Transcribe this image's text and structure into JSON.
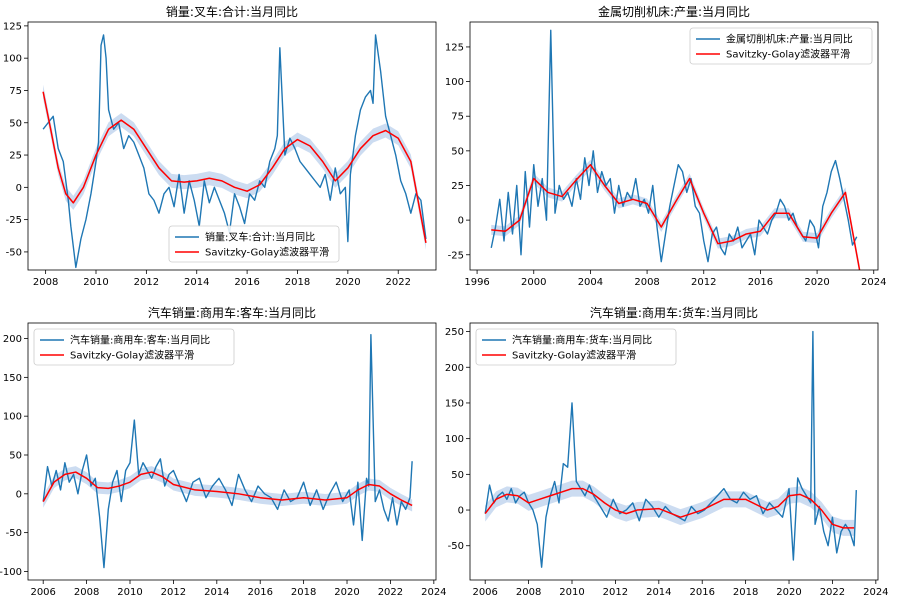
{
  "colors": {
    "raw": "#1f77b4",
    "smooth": "#ff0000",
    "band": "#aac4e8"
  },
  "chart_data": [
    {
      "type": "line",
      "title": "销量:叉车:合计:当月同比",
      "xlim": [
        2007.3,
        2023.5
      ],
      "ylim": [
        -64,
        128
      ],
      "xticks": [
        2008,
        2010,
        2012,
        2014,
        2016,
        2018,
        2020,
        2022
      ],
      "yticks": [
        -50,
        -25,
        0,
        25,
        50,
        75,
        100,
        125
      ],
      "legend": {
        "position": "lower-center",
        "entries": [
          "销量:叉车:合计:当月同比",
          "Savitzky-Golay滤波器平滑"
        ]
      },
      "series": [
        {
          "name": "销量:叉车:合计:当月同比",
          "role": "raw",
          "x": [
            2007.9,
            2008.1,
            2008.3,
            2008.5,
            2008.7,
            2008.9,
            2009.0,
            2009.2,
            2009.4,
            2009.6,
            2009.8,
            2010.0,
            2010.1,
            2010.2,
            2010.3,
            2010.4,
            2010.5,
            2010.7,
            2010.9,
            2011.1,
            2011.3,
            2011.5,
            2011.7,
            2011.9,
            2012.1,
            2012.3,
            2012.5,
            2012.7,
            2012.9,
            2013.1,
            2013.3,
            2013.5,
            2013.7,
            2013.9,
            2014.1,
            2014.3,
            2014.5,
            2014.7,
            2014.9,
            2015.1,
            2015.3,
            2015.5,
            2015.7,
            2015.9,
            2016.1,
            2016.3,
            2016.5,
            2016.7,
            2016.9,
            2017.1,
            2017.2,
            2017.3,
            2017.5,
            2017.7,
            2017.9,
            2018.1,
            2018.3,
            2018.5,
            2018.7,
            2018.9,
            2019.1,
            2019.3,
            2019.5,
            2019.7,
            2019.9,
            2020.0,
            2020.1,
            2020.3,
            2020.5,
            2020.7,
            2020.9,
            2021.0,
            2021.1,
            2021.3,
            2021.5,
            2021.7,
            2021.9,
            2022.1,
            2022.3,
            2022.5,
            2022.7,
            2022.9,
            2023.1
          ],
          "y": [
            45,
            50,
            55,
            30,
            20,
            -10,
            -30,
            -62,
            -40,
            -25,
            -5,
            20,
            35,
            110,
            118,
            100,
            60,
            45,
            50,
            30,
            40,
            35,
            25,
            15,
            -5,
            -10,
            -20,
            -5,
            0,
            -15,
            10,
            -20,
            5,
            -10,
            -30,
            5,
            -12,
            0,
            -10,
            -20,
            -35,
            -5,
            -15,
            -28,
            -5,
            -10,
            5,
            0,
            20,
            30,
            40,
            108,
            25,
            38,
            30,
            20,
            15,
            10,
            5,
            0,
            10,
            -10,
            15,
            -5,
            0,
            -42,
            10,
            40,
            60,
            70,
            75,
            65,
            118,
            90,
            55,
            40,
            25,
            5,
            -5,
            -20,
            -5,
            -10,
            -40
          ]
        },
        {
          "name": "Savitzky-Golay滤波器平滑",
          "role": "smooth",
          "x": [
            2007.9,
            2008.2,
            2008.5,
            2008.8,
            2009.1,
            2009.5,
            2010.0,
            2010.5,
            2011.0,
            2011.5,
            2012.0,
            2012.5,
            2013.0,
            2013.5,
            2014.0,
            2014.5,
            2015.0,
            2015.5,
            2016.0,
            2016.5,
            2017.0,
            2017.5,
            2018.0,
            2018.5,
            2019.0,
            2019.5,
            2020.0,
            2020.5,
            2021.0,
            2021.5,
            2022.0,
            2022.5,
            2023.1
          ],
          "y": [
            74,
            45,
            15,
            -5,
            -12,
            0,
            25,
            45,
            52,
            45,
            30,
            15,
            5,
            4,
            5,
            7,
            5,
            0,
            -3,
            2,
            15,
            30,
            37,
            32,
            20,
            5,
            15,
            30,
            40,
            44,
            38,
            20,
            -43
          ]
        }
      ]
    },
    {
      "type": "line",
      "title": "金属切削机床:产量:当月同比",
      "xlim": [
        1995.5,
        2024.3
      ],
      "ylim": [
        -36,
        143
      ],
      "xticks": [
        1996,
        2000,
        2004,
        2008,
        2012,
        2016,
        2020,
        2024
      ],
      "yticks": [
        -25,
        0,
        25,
        50,
        75,
        100,
        125
      ],
      "legend": {
        "position": "upper-right",
        "entries": [
          "金属切削机床:产量:当月同比",
          "Savitzky-Golay滤波器平滑"
        ]
      },
      "series": [
        {
          "name": "金属切削机床:产量:当月同比",
          "role": "raw",
          "x": [
            1997.0,
            1997.3,
            1997.6,
            1997.9,
            1998.2,
            1998.5,
            1998.8,
            1999.1,
            1999.4,
            1999.7,
            2000.0,
            2000.3,
            2000.6,
            2000.9,
            2001.2,
            2001.5,
            2001.8,
            2002.1,
            2002.4,
            2002.7,
            2003.0,
            2003.3,
            2003.6,
            2003.9,
            2004.2,
            2004.5,
            2004.8,
            2005.1,
            2005.4,
            2005.7,
            2006.0,
            2006.3,
            2006.6,
            2006.9,
            2007.2,
            2007.5,
            2007.8,
            2008.1,
            2008.4,
            2008.7,
            2009.0,
            2009.3,
            2009.6,
            2009.9,
            2010.2,
            2010.5,
            2010.8,
            2011.1,
            2011.4,
            2011.7,
            2012.0,
            2012.3,
            2012.6,
            2012.9,
            2013.2,
            2013.5,
            2013.8,
            2014.1,
            2014.4,
            2014.7,
            2015.0,
            2015.3,
            2015.6,
            2015.9,
            2016.2,
            2016.5,
            2016.8,
            2017.1,
            2017.4,
            2017.7,
            2018.0,
            2018.3,
            2018.6,
            2018.9,
            2019.2,
            2019.5,
            2019.8,
            2020.1,
            2020.4,
            2020.7,
            2021.0,
            2021.3,
            2021.6,
            2021.9,
            2022.2,
            2022.5,
            2022.8
          ],
          "y": [
            -20,
            -5,
            15,
            -15,
            20,
            -10,
            25,
            -25,
            35,
            -5,
            40,
            10,
            30,
            0,
            137,
            5,
            25,
            15,
            20,
            10,
            30,
            15,
            45,
            25,
            50,
            20,
            35,
            25,
            30,
            5,
            25,
            10,
            20,
            15,
            30,
            10,
            15,
            5,
            25,
            -5,
            -30,
            -10,
            10,
            25,
            40,
            35,
            20,
            30,
            10,
            5,
            -15,
            -30,
            -10,
            -5,
            -20,
            -25,
            -10,
            -15,
            -5,
            -20,
            -15,
            -10,
            -25,
            0,
            -5,
            -10,
            0,
            5,
            15,
            10,
            0,
            5,
            -5,
            -10,
            -15,
            0,
            -5,
            -20,
            10,
            20,
            35,
            43,
            30,
            15,
            0,
            -18,
            -12
          ]
        },
        {
          "name": "Savitzky-Golay滤波器平滑",
          "role": "smooth",
          "x": [
            1997.0,
            1998.0,
            1999.0,
            2000.0,
            2001.0,
            2002.0,
            2003.0,
            2004.0,
            2005.0,
            2006.0,
            2007.0,
            2008.0,
            2009.0,
            2010.0,
            2011.0,
            2012.0,
            2013.0,
            2014.0,
            2015.0,
            2016.0,
            2017.0,
            2018.0,
            2019.0,
            2020.0,
            2021.0,
            2022.0,
            2023.0
          ],
          "y": [
            -7,
            -8,
            0,
            30,
            20,
            17,
            29,
            40,
            25,
            12,
            15,
            12,
            -5,
            13,
            30,
            5,
            -17,
            -15,
            -10,
            -8,
            5,
            5,
            -12,
            -13,
            5,
            20,
            -36
          ]
        }
      ]
    },
    {
      "type": "line",
      "title": "汽车销量:商用车:客车:当月同比",
      "xlim": [
        2005.3,
        2024.1
      ],
      "ylim": [
        -111,
        220
      ],
      "xticks": [
        2006,
        2008,
        2010,
        2012,
        2014,
        2016,
        2018,
        2020,
        2022,
        2024
      ],
      "yticks": [
        -100,
        -50,
        0,
        50,
        100,
        150,
        200
      ],
      "legend": {
        "position": "upper-left",
        "entries": [
          "汽车销量:商用车:客车:当月同比",
          "Savitzky-Golay滤波器平滑"
        ]
      },
      "series": [
        {
          "name": "汽车销量:商用车:客车:当月同比",
          "role": "raw",
          "x": [
            2006.0,
            2006.2,
            2006.4,
            2006.6,
            2006.8,
            2007.0,
            2007.2,
            2007.4,
            2007.6,
            2007.8,
            2008.0,
            2008.2,
            2008.4,
            2008.6,
            2008.8,
            2009.0,
            2009.2,
            2009.4,
            2009.6,
            2009.8,
            2010.0,
            2010.2,
            2010.4,
            2010.6,
            2010.8,
            2011.0,
            2011.2,
            2011.4,
            2011.6,
            2011.8,
            2012.0,
            2012.3,
            2012.6,
            2012.9,
            2013.2,
            2013.5,
            2013.8,
            2014.1,
            2014.4,
            2014.7,
            2015.0,
            2015.3,
            2015.6,
            2015.9,
            2016.2,
            2016.5,
            2016.8,
            2017.1,
            2017.4,
            2017.7,
            2018.0,
            2018.3,
            2018.6,
            2018.9,
            2019.2,
            2019.5,
            2019.8,
            2020.1,
            2020.3,
            2020.5,
            2020.7,
            2020.9,
            2021.0,
            2021.1,
            2021.3,
            2021.5,
            2021.7,
            2021.9,
            2022.1,
            2022.3,
            2022.5,
            2022.7,
            2022.9,
            2023.0
          ],
          "y": [
            -10,
            35,
            10,
            30,
            5,
            40,
            15,
            25,
            0,
            30,
            50,
            10,
            20,
            -30,
            -95,
            -20,
            15,
            30,
            -10,
            30,
            40,
            95,
            25,
            40,
            30,
            20,
            35,
            45,
            10,
            25,
            30,
            10,
            -10,
            15,
            20,
            -5,
            10,
            20,
            5,
            -15,
            25,
            5,
            -10,
            10,
            0,
            -5,
            -20,
            5,
            -10,
            -5,
            15,
            -15,
            5,
            -20,
            0,
            15,
            -10,
            5,
            -40,
            15,
            -60,
            20,
            10,
            205,
            -10,
            5,
            -20,
            -35,
            -5,
            -40,
            -10,
            -20,
            -5,
            42
          ]
        },
        {
          "name": "Savitzky-Golay滤波器平滑",
          "role": "smooth",
          "x": [
            2006.0,
            2006.5,
            2007.0,
            2007.5,
            2008.0,
            2008.5,
            2009.0,
            2009.5,
            2010.0,
            2010.5,
            2011.0,
            2011.5,
            2012.0,
            2013.0,
            2014.0,
            2015.0,
            2016.0,
            2017.0,
            2018.0,
            2019.0,
            2020.0,
            2020.5,
            2021.0,
            2021.5,
            2022.0,
            2022.5,
            2023.0
          ],
          "y": [
            -10,
            15,
            25,
            28,
            20,
            8,
            7,
            10,
            15,
            25,
            28,
            22,
            12,
            5,
            3,
            0,
            -5,
            -8,
            -5,
            -8,
            -5,
            5,
            12,
            10,
            0,
            -8,
            -15
          ]
        }
      ]
    },
    {
      "type": "line",
      "title": "汽车销量:商用车:货车:当月同比",
      "xlim": [
        2005.3,
        2024.1
      ],
      "ylim": [
        -98,
        262
      ],
      "xticks": [
        2006,
        2008,
        2010,
        2012,
        2014,
        2016,
        2018,
        2020,
        2022,
        2024
      ],
      "yticks": [
        -50,
        0,
        50,
        100,
        150,
        200,
        250
      ],
      "legend": {
        "position": "upper-left",
        "entries": [
          "汽车销量:商用车:货车:当月同比",
          "Savitzky-Golay滤波器平滑"
        ]
      },
      "series": [
        {
          "name": "汽车销量:商用车:货车:当月同比",
          "role": "raw",
          "x": [
            2006.0,
            2006.2,
            2006.4,
            2006.6,
            2006.8,
            2007.0,
            2007.2,
            2007.4,
            2007.6,
            2007.8,
            2008.0,
            2008.2,
            2008.4,
            2008.6,
            2008.8,
            2009.0,
            2009.2,
            2009.4,
            2009.6,
            2009.8,
            2010.0,
            2010.2,
            2010.4,
            2010.6,
            2010.8,
            2011.0,
            2011.3,
            2011.6,
            2011.9,
            2012.2,
            2012.5,
            2012.8,
            2013.1,
            2013.4,
            2013.7,
            2014.0,
            2014.3,
            2014.6,
            2014.9,
            2015.2,
            2015.5,
            2015.8,
            2016.1,
            2016.4,
            2016.7,
            2017.0,
            2017.3,
            2017.6,
            2017.9,
            2018.2,
            2018.5,
            2018.8,
            2019.1,
            2019.4,
            2019.7,
            2020.0,
            2020.2,
            2020.4,
            2020.6,
            2020.8,
            2021.0,
            2021.1,
            2021.2,
            2021.4,
            2021.6,
            2021.8,
            2022.0,
            2022.2,
            2022.4,
            2022.6,
            2022.8,
            2023.0,
            2023.1
          ],
          "y": [
            -5,
            35,
            10,
            20,
            25,
            15,
            30,
            10,
            20,
            25,
            10,
            0,
            -20,
            -80,
            -10,
            20,
            40,
            10,
            65,
            60,
            150,
            40,
            30,
            20,
            35,
            20,
            5,
            -10,
            15,
            -5,
            0,
            10,
            -15,
            15,
            5,
            -10,
            5,
            -5,
            -10,
            -15,
            5,
            -5,
            0,
            10,
            20,
            30,
            15,
            10,
            25,
            15,
            20,
            -5,
            10,
            0,
            -10,
            30,
            -70,
            45,
            30,
            20,
            10,
            250,
            -20,
            5,
            -30,
            -50,
            -10,
            -60,
            -30,
            -20,
            -30,
            -50,
            28
          ]
        },
        {
          "name": "Savitzky-Golay滤波器平滑",
          "role": "smooth",
          "x": [
            2006.0,
            2006.5,
            2007.0,
            2007.5,
            2008.0,
            2008.5,
            2009.0,
            2009.5,
            2010.0,
            2010.5,
            2011.0,
            2011.5,
            2012.0,
            2012.5,
            2013.0,
            2014.0,
            2015.0,
            2016.0,
            2017.0,
            2018.0,
            2019.0,
            2019.5,
            2020.0,
            2020.5,
            2021.0,
            2021.5,
            2022.0,
            2022.5,
            2023.0
          ],
          "y": [
            -5,
            15,
            22,
            20,
            10,
            15,
            20,
            25,
            30,
            30,
            22,
            10,
            0,
            -5,
            0,
            2,
            -10,
            0,
            15,
            15,
            0,
            5,
            20,
            22,
            15,
            0,
            -20,
            -25,
            -25
          ]
        }
      ]
    }
  ]
}
